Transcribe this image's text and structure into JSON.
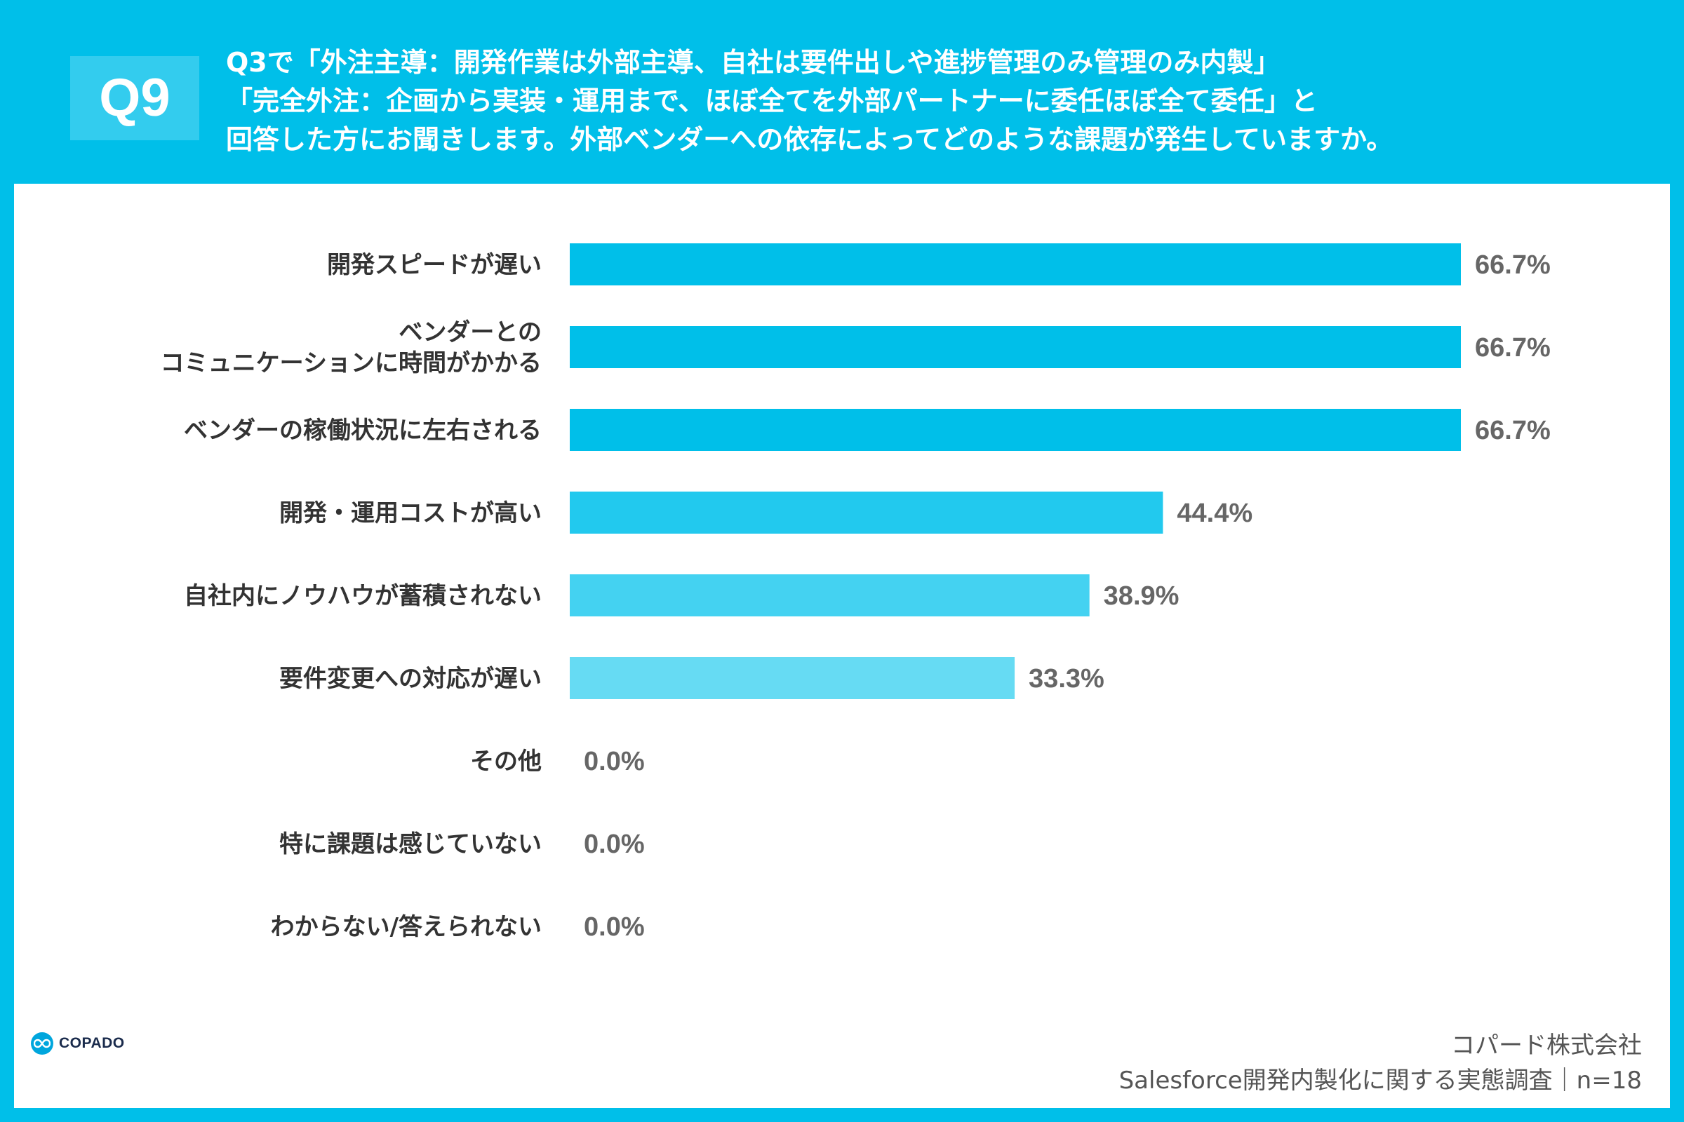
{
  "header": {
    "badge": "Q9",
    "question_lines": [
      "Q3で「外注主導：開発作業は外部主導、自社は要件出しや進捗管理のみ管理のみ内製」",
      "「完全外注：企画から実装・運用まで、ほぼ全てを外部パートナーに委任ほぼ全て委任」と",
      "回答した方にお聞きします。外部ベンダーへの依存によってどのような課題が発生していますか。"
    ]
  },
  "chart_data": {
    "type": "bar",
    "orientation": "horizontal",
    "categories": [
      "開発スピードが遅い",
      "ベンダーとの\nコミュニケーションに時間がかかる",
      "ベンダーの稼働状況に左右される",
      "開発・運用コストが高い",
      "自社内にノウハウが蓄積されない",
      "要件変更への対応が遅い",
      "その他",
      "特に課題は感じていない",
      "わからない/答えられない"
    ],
    "values": [
      66.7,
      66.7,
      66.7,
      44.4,
      38.9,
      33.3,
      0.0,
      0.0,
      0.0
    ],
    "value_labels": [
      "66.7%",
      "66.7%",
      "66.7%",
      "44.4%",
      "38.9%",
      "33.3%",
      "0.0%",
      "0.0%",
      "0.0%"
    ],
    "bar_colors": [
      "#00bfe9",
      "#00bfe9",
      "#00bfe9",
      "#22c9ee",
      "#44d2f1",
      "#66dbf3",
      "#66dbf3",
      "#66dbf3",
      "#66dbf3"
    ],
    "xlim": [
      0,
      66.7
    ],
    "grid": false,
    "legend": "none"
  },
  "logo": {
    "text": "COPADO",
    "icon": "infinity-icon"
  },
  "footer": {
    "company": "コパード株式会社",
    "survey": "Salesforce開発内製化に関する実態調査｜n=18"
  },
  "colors": {
    "background": "#00bfe9",
    "panel": "#ffffff",
    "badge": "#33ccee"
  }
}
